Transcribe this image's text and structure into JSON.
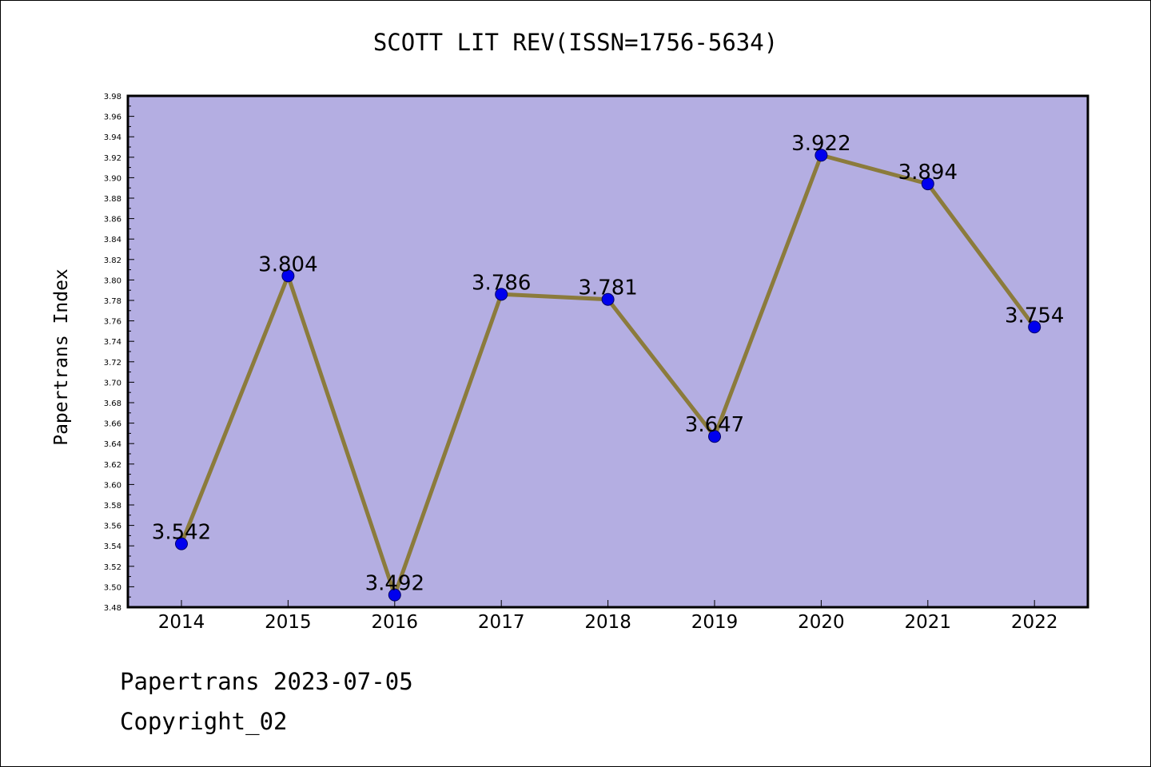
{
  "chart_data": {
    "type": "line",
    "title": "SCOTT LIT REV(ISSN=1756-5634)",
    "xlabel": "",
    "ylabel": "Papertrans Index",
    "categories": [
      "2014",
      "2015",
      "2016",
      "2017",
      "2018",
      "2019",
      "2020",
      "2021",
      "2022"
    ],
    "values": [
      3.542,
      3.804,
      3.492,
      3.786,
      3.781,
      3.647,
      3.922,
      3.894,
      3.754
    ],
    "data_labels": [
      "3.542",
      "3.804",
      "3.492",
      "3.786",
      "3.781",
      "3.647",
      "3.922",
      "3.894",
      "3.754"
    ],
    "ylim": [
      3.48,
      3.98
    ],
    "y_ticks": [
      "3.48",
      "3.50",
      "3.52",
      "3.54",
      "3.56",
      "3.58",
      "3.60",
      "3.62",
      "3.64",
      "3.66",
      "3.68",
      "3.70",
      "3.72",
      "3.74",
      "3.76",
      "3.78",
      "3.80",
      "3.82",
      "3.84",
      "3.86",
      "3.88",
      "3.90",
      "3.92",
      "3.94",
      "3.96",
      "3.98"
    ],
    "grid": false,
    "colors": {
      "plot_background": "#b4aee2",
      "line": "#8b7b3c",
      "marker": "#0000ee"
    }
  },
  "footer": {
    "line1": "Papertrans 2023-07-05",
    "line2": "Copyright_02"
  }
}
